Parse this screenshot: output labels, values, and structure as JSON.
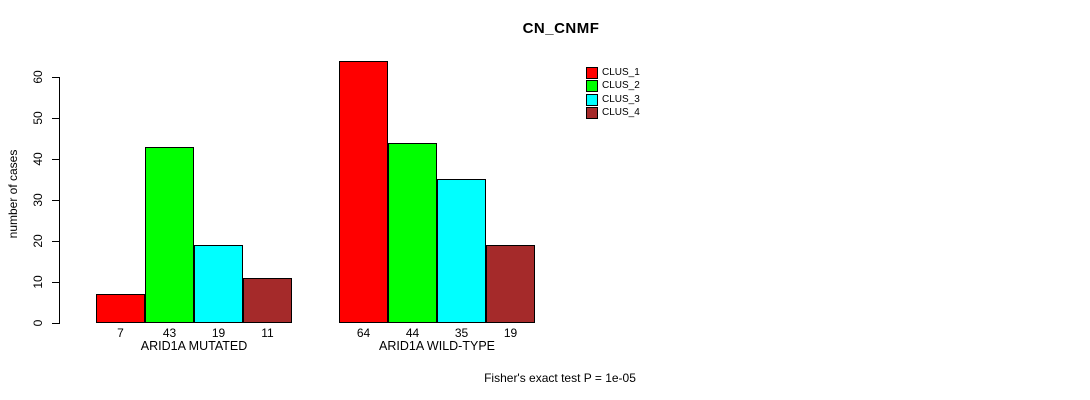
{
  "figure": {
    "title": "CN_CNMF",
    "annotation": "Fisher's exact test P = 1e-05"
  },
  "chart_data": {
    "type": "bar",
    "title": "CN_CNMF",
    "xlabel": "",
    "ylabel": "number of cases",
    "ylim": [
      0,
      60
    ],
    "yticks": [
      0,
      10,
      20,
      30,
      40,
      50,
      60
    ],
    "grid": false,
    "legend_position": "top-right",
    "categories": [
      "ARID1A MUTATED",
      "ARID1A WILD-TYPE"
    ],
    "series": [
      {
        "name": "CLUS_1",
        "color": "#FF0000",
        "values": [
          7,
          64
        ]
      },
      {
        "name": "CLUS_2",
        "color": "#00FF00",
        "values": [
          43,
          44
        ]
      },
      {
        "name": "CLUS_3",
        "color": "#00FFFF",
        "values": [
          19,
          35
        ]
      },
      {
        "name": "CLUS_4",
        "color": "#A52A2A",
        "values": [
          11,
          19
        ]
      }
    ],
    "value_labels_shown": true,
    "annotation": "Fisher's exact test P = 1e-05"
  }
}
